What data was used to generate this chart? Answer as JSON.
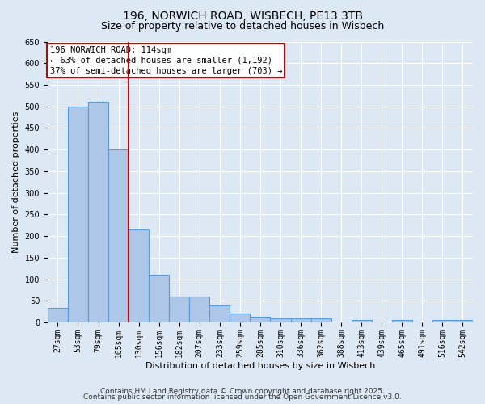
{
  "title1": "196, NORWICH ROAD, WISBECH, PE13 3TB",
  "title2": "Size of property relative to detached houses in Wisbech",
  "xlabel": "Distribution of detached houses by size in Wisbech",
  "ylabel": "Number of detached properties",
  "categories": [
    "27sqm",
    "53sqm",
    "79sqm",
    "105sqm",
    "130sqm",
    "156sqm",
    "182sqm",
    "207sqm",
    "233sqm",
    "259sqm",
    "285sqm",
    "310sqm",
    "336sqm",
    "362sqm",
    "388sqm",
    "413sqm",
    "439sqm",
    "465sqm",
    "491sqm",
    "516sqm",
    "542sqm"
  ],
  "values": [
    33,
    500,
    510,
    400,
    215,
    110,
    60,
    60,
    40,
    20,
    13,
    10,
    10,
    10,
    0,
    5,
    0,
    5,
    0,
    5,
    5
  ],
  "bar_color": "#aec6e8",
  "bar_edge_color": "#5b9bd5",
  "vline_x": 3.5,
  "vline_color": "#cc0000",
  "annotation_text": "196 NORWICH ROAD: 114sqm\n← 63% of detached houses are smaller (1,192)\n37% of semi-detached houses are larger (703) →",
  "annotation_box_color": "#ffffff",
  "annotation_box_edge": "#cc0000",
  "ylim": [
    0,
    650
  ],
  "yticks": [
    0,
    50,
    100,
    150,
    200,
    250,
    300,
    350,
    400,
    450,
    500,
    550,
    600,
    650
  ],
  "background_color": "#dde8f5",
  "grid_color": "#c5d5e8",
  "footer1": "Contains HM Land Registry data © Crown copyright and database right 2025.",
  "footer2": "Contains public sector information licensed under the Open Government Licence v3.0.",
  "title_fontsize": 10,
  "subtitle_fontsize": 9,
  "axis_label_fontsize": 8,
  "tick_fontsize": 7,
  "annotation_fontsize": 7.5,
  "footer_fontsize": 6.5
}
